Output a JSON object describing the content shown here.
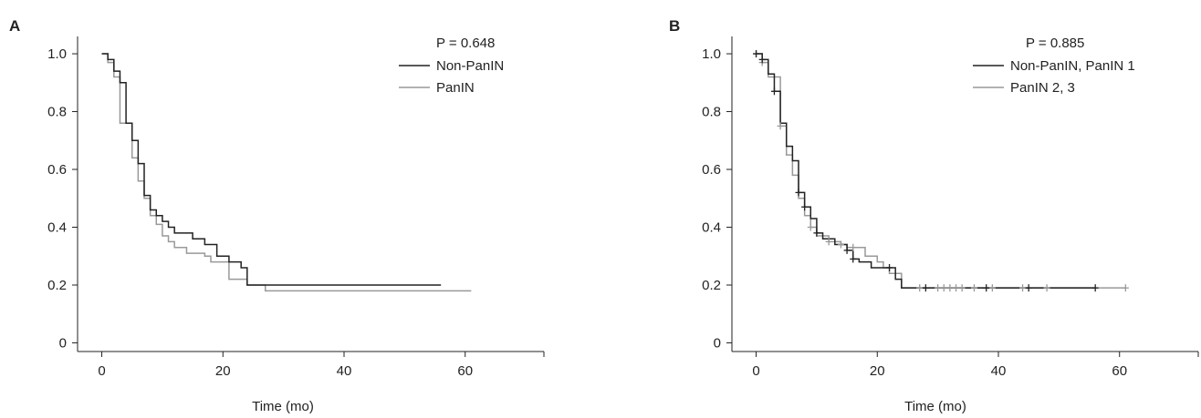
{
  "chart_data": [
    {
      "panel": "A",
      "type": "line",
      "subtype": "kaplan-meier",
      "xlabel": "Time (mo)",
      "ylabel": "",
      "xlim": [
        -4,
        73
      ],
      "ylim": [
        -0.03,
        1.06
      ],
      "xticks": [
        0,
        20,
        40,
        60
      ],
      "yticks": [
        0,
        0.2,
        0.4,
        0.6,
        0.8,
        1.0
      ],
      "xtick_labels": [
        "0",
        "20",
        "40",
        "60"
      ],
      "ytick_labels": [
        "0",
        "0.2",
        "0.4",
        "0.6",
        "0.8",
        "1.0"
      ],
      "grid": false,
      "legend_position": "top-right",
      "p_value_text": "P = 0.648",
      "series": [
        {
          "name": "Non-PanIN",
          "color": "#222222",
          "steps": [
            [
              0,
              1.0
            ],
            [
              1,
              0.98
            ],
            [
              2,
              0.94
            ],
            [
              3,
              0.9
            ],
            [
              4,
              0.76
            ],
            [
              5,
              0.7
            ],
            [
              6,
              0.62
            ],
            [
              7,
              0.51
            ],
            [
              8,
              0.46
            ],
            [
              9,
              0.44
            ],
            [
              10,
              0.42
            ],
            [
              11,
              0.4
            ],
            [
              12,
              0.38
            ],
            [
              15,
              0.36
            ],
            [
              17,
              0.34
            ],
            [
              19,
              0.3
            ],
            [
              21,
              0.28
            ],
            [
              23,
              0.26
            ],
            [
              24,
              0.2
            ],
            [
              56,
              0.2
            ]
          ],
          "censored": []
        },
        {
          "name": "PanIN",
          "color": "#999999",
          "steps": [
            [
              0,
              1.0
            ],
            [
              1,
              0.97
            ],
            [
              2,
              0.92
            ],
            [
              3,
              0.76
            ],
            [
              5,
              0.64
            ],
            [
              6,
              0.56
            ],
            [
              7,
              0.5
            ],
            [
              8,
              0.44
            ],
            [
              9,
              0.41
            ],
            [
              10,
              0.37
            ],
            [
              11,
              0.35
            ],
            [
              12,
              0.33
            ],
            [
              14,
              0.31
            ],
            [
              17,
              0.3
            ],
            [
              18,
              0.28
            ],
            [
              21,
              0.22
            ],
            [
              24,
              0.2
            ],
            [
              27,
              0.18
            ],
            [
              61,
              0.18
            ]
          ],
          "censored": []
        }
      ]
    },
    {
      "panel": "B",
      "type": "line",
      "subtype": "kaplan-meier",
      "xlabel": "Time (mo)",
      "ylabel": "",
      "xlim": [
        -4,
        73
      ],
      "ylim": [
        -0.03,
        1.06
      ],
      "xticks": [
        0,
        20,
        40,
        60
      ],
      "yticks": [
        0,
        0.2,
        0.4,
        0.6,
        0.8,
        1.0
      ],
      "xtick_labels": [
        "0",
        "20",
        "40",
        "60"
      ],
      "ytick_labels": [
        "0",
        "0.2",
        "0.4",
        "0.6",
        "0.8",
        "1.0"
      ],
      "grid": false,
      "legend_position": "top-right",
      "p_value_text": "P = 0.885",
      "series": [
        {
          "name": "Non-PanIN, PanIN 1",
          "color": "#222222",
          "steps": [
            [
              0,
              1.0
            ],
            [
              1,
              0.98
            ],
            [
              2,
              0.93
            ],
            [
              3,
              0.87
            ],
            [
              4,
              0.76
            ],
            [
              5,
              0.68
            ],
            [
              6,
              0.63
            ],
            [
              7,
              0.52
            ],
            [
              8,
              0.47
            ],
            [
              9,
              0.43
            ],
            [
              10,
              0.38
            ],
            [
              11,
              0.36
            ],
            [
              13,
              0.34
            ],
            [
              15,
              0.32
            ],
            [
              16,
              0.29
            ],
            [
              17,
              0.28
            ],
            [
              19,
              0.26
            ],
            [
              23,
              0.22
            ],
            [
              24,
              0.19
            ],
            [
              56,
              0.19
            ]
          ],
          "censored": [
            [
              0,
              1.0
            ],
            [
              1,
              0.98
            ],
            [
              3,
              0.87
            ],
            [
              7,
              0.52
            ],
            [
              8,
              0.47
            ],
            [
              10,
              0.38
            ],
            [
              15,
              0.32
            ],
            [
              16,
              0.29
            ],
            [
              22,
              0.26
            ],
            [
              28,
              0.19
            ],
            [
              38,
              0.19
            ],
            [
              45,
              0.19
            ],
            [
              56,
              0.19
            ]
          ]
        },
        {
          "name": "PanIN 2, 3",
          "color": "#999999",
          "steps": [
            [
              0,
              1.0
            ],
            [
              1,
              0.97
            ],
            [
              2,
              0.92
            ],
            [
              4,
              0.75
            ],
            [
              5,
              0.65
            ],
            [
              6,
              0.58
            ],
            [
              7,
              0.5
            ],
            [
              8,
              0.44
            ],
            [
              9,
              0.4
            ],
            [
              10,
              0.37
            ],
            [
              12,
              0.35
            ],
            [
              14,
              0.34
            ],
            [
              15,
              0.33
            ],
            [
              18,
              0.3
            ],
            [
              20,
              0.28
            ],
            [
              21,
              0.26
            ],
            [
              22,
              0.24
            ],
            [
              24,
              0.19
            ],
            [
              61,
              0.19
            ]
          ],
          "censored": [
            [
              0,
              1.0
            ],
            [
              1,
              0.97
            ],
            [
              4,
              0.75
            ],
            [
              9,
              0.4
            ],
            [
              12,
              0.35
            ],
            [
              14,
              0.34
            ],
            [
              16,
              0.33
            ],
            [
              27,
              0.19
            ],
            [
              30,
              0.19
            ],
            [
              31,
              0.19
            ],
            [
              32,
              0.19
            ],
            [
              33,
              0.19
            ],
            [
              34,
              0.19
            ],
            [
              36,
              0.19
            ],
            [
              39,
              0.19
            ],
            [
              44,
              0.19
            ],
            [
              48,
              0.19
            ],
            [
              61,
              0.19
            ]
          ]
        }
      ]
    }
  ]
}
